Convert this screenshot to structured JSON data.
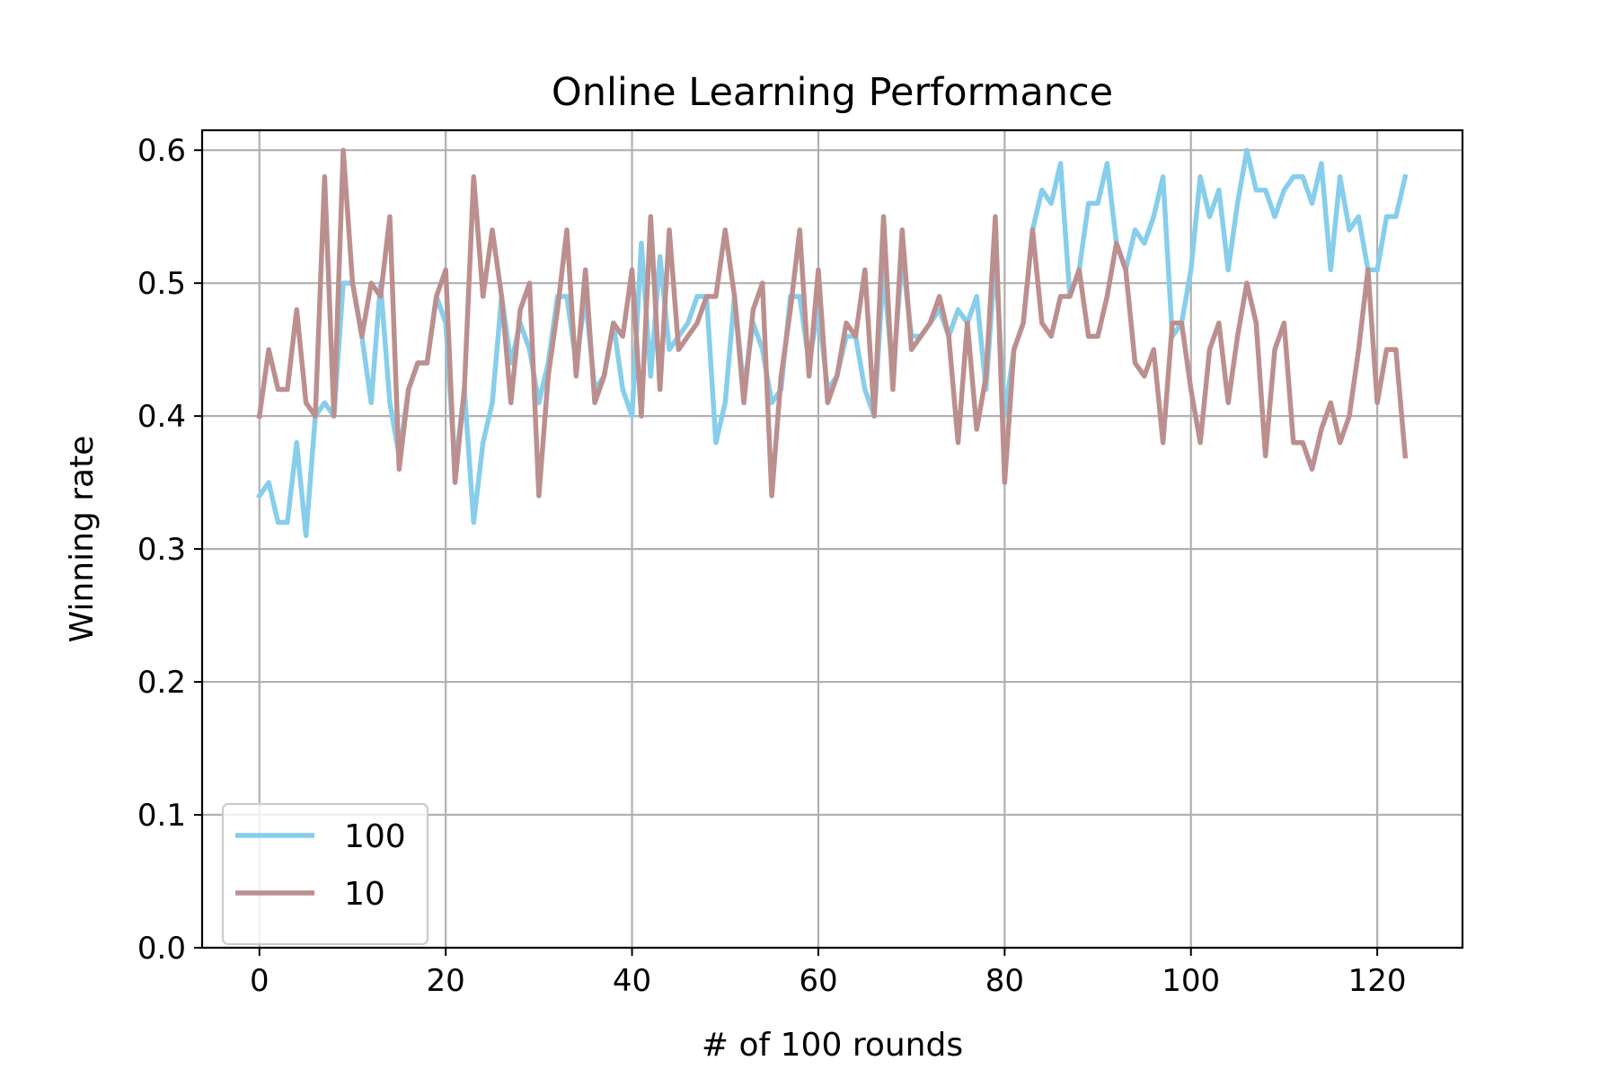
{
  "chart_data": {
    "type": "line",
    "title": "Online Learning Performance",
    "xlabel": "# of 100 rounds",
    "ylabel": "Winning rate",
    "xlim": [
      -6.15,
      129.15
    ],
    "ylim": [
      0.0,
      0.615
    ],
    "xticks": [
      0,
      20,
      40,
      60,
      80,
      100,
      120
    ],
    "yticks": [
      0.0,
      0.1,
      0.2,
      0.3,
      0.4,
      0.5,
      0.6
    ],
    "xtick_labels": [
      "0",
      "20",
      "40",
      "60",
      "80",
      "100",
      "120"
    ],
    "ytick_labels": [
      "0.0",
      "0.1",
      "0.2",
      "0.3",
      "0.4",
      "0.5",
      "0.6"
    ],
    "grid": true,
    "legend_position": "lower-left",
    "series": [
      {
        "name": "100",
        "color": "#87CEEB",
        "values": [
          0.34,
          0.35,
          0.32,
          0.32,
          0.38,
          0.31,
          0.4,
          0.41,
          0.4,
          0.5,
          0.5,
          0.46,
          0.41,
          0.5,
          0.41,
          0.37,
          0.42,
          0.44,
          0.44,
          0.49,
          0.47,
          0.36,
          0.42,
          0.32,
          0.38,
          0.41,
          0.49,
          0.44,
          0.47,
          0.45,
          0.41,
          0.44,
          0.49,
          0.49,
          0.44,
          0.49,
          0.42,
          0.43,
          0.47,
          0.42,
          0.4,
          0.53,
          0.43,
          0.52,
          0.45,
          0.46,
          0.47,
          0.49,
          0.49,
          0.38,
          0.41,
          0.49,
          0.42,
          0.47,
          0.45,
          0.41,
          0.42,
          0.49,
          0.49,
          0.44,
          0.48,
          0.42,
          0.43,
          0.46,
          0.46,
          0.42,
          0.4,
          0.51,
          0.43,
          0.52,
          0.46,
          0.46,
          0.47,
          0.48,
          0.46,
          0.48,
          0.47,
          0.49,
          0.42,
          0.52,
          0.4,
          0.45,
          0.47,
          0.54,
          0.57,
          0.56,
          0.59,
          0.49,
          0.51,
          0.56,
          0.56,
          0.59,
          0.53,
          0.51,
          0.54,
          0.53,
          0.55,
          0.58,
          0.46,
          0.47,
          0.51,
          0.58,
          0.55,
          0.57,
          0.51,
          0.56,
          0.6,
          0.57,
          0.57,
          0.55,
          0.57,
          0.58,
          0.58,
          0.56,
          0.59,
          0.51,
          0.58,
          0.54,
          0.55,
          0.51,
          0.51,
          0.55,
          0.55,
          0.58
        ]
      },
      {
        "name": "10",
        "color": "#BC8F8F",
        "values": [
          0.4,
          0.45,
          0.42,
          0.42,
          0.48,
          0.41,
          0.4,
          0.58,
          0.4,
          0.6,
          0.5,
          0.46,
          0.5,
          0.49,
          0.55,
          0.36,
          0.42,
          0.44,
          0.44,
          0.49,
          0.51,
          0.35,
          0.42,
          0.58,
          0.49,
          0.54,
          0.49,
          0.41,
          0.48,
          0.5,
          0.34,
          0.43,
          0.48,
          0.54,
          0.43,
          0.51,
          0.41,
          0.43,
          0.47,
          0.46,
          0.51,
          0.4,
          0.55,
          0.42,
          0.54,
          0.45,
          0.46,
          0.47,
          0.49,
          0.49,
          0.54,
          0.49,
          0.41,
          0.48,
          0.5,
          0.34,
          0.43,
          0.48,
          0.54,
          0.43,
          0.51,
          0.41,
          0.43,
          0.47,
          0.46,
          0.51,
          0.4,
          0.55,
          0.42,
          0.54,
          0.45,
          0.46,
          0.47,
          0.49,
          0.46,
          0.38,
          0.47,
          0.39,
          0.43,
          0.55,
          0.35,
          0.45,
          0.47,
          0.54,
          0.47,
          0.46,
          0.49,
          0.49,
          0.51,
          0.46,
          0.46,
          0.49,
          0.53,
          0.51,
          0.44,
          0.43,
          0.45,
          0.38,
          0.47,
          0.47,
          0.42,
          0.38,
          0.45,
          0.47,
          0.41,
          0.46,
          0.5,
          0.47,
          0.37,
          0.45,
          0.47,
          0.38,
          0.38,
          0.36,
          0.39,
          0.41,
          0.38,
          0.4,
          0.45,
          0.51,
          0.41,
          0.45,
          0.45,
          0.37
        ]
      }
    ]
  }
}
